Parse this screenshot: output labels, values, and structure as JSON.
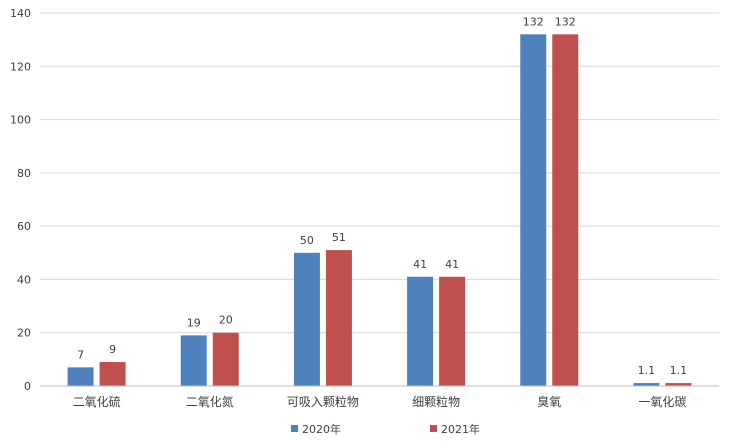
{
  "chart_data": {
    "type": "bar",
    "title": "",
    "xlabel": "",
    "ylabel": "",
    "categories": [
      "二氧化硫",
      "二氧化氮",
      "可吸入颗粒物",
      "细颗粒物",
      "臭氧",
      "一氧化碳"
    ],
    "series": [
      {
        "name": "2020年",
        "values": [
          7,
          19,
          50,
          41,
          132,
          1.1
        ],
        "labels": [
          "7",
          "19",
          "50",
          "41",
          "132",
          "1.1"
        ],
        "color": "#4F81BD"
      },
      {
        "name": "2021年",
        "values": [
          9,
          20,
          51,
          41,
          132,
          1.1
        ],
        "labels": [
          "9",
          "20",
          "51",
          "41",
          "132",
          "1.1"
        ],
        "color": "#C0504D"
      }
    ],
    "ylim": [
      0,
      140
    ],
    "yticks": [
      0,
      20,
      40,
      60,
      80,
      100,
      120,
      140
    ],
    "grid": true,
    "legend_position": "bottom"
  }
}
